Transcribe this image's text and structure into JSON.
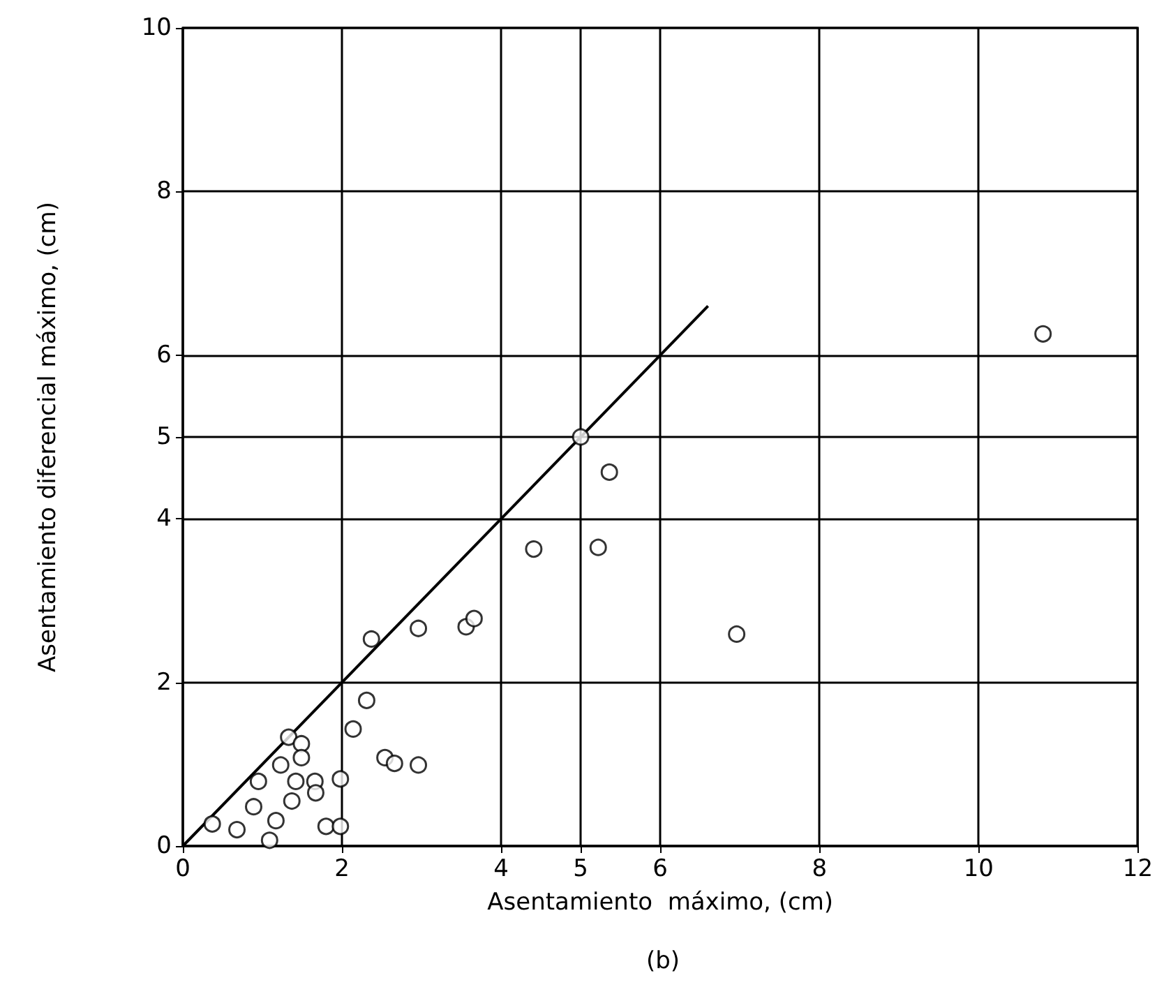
{
  "chart_data": {
    "type": "scatter",
    "xlabel": "Asentamiento  máximo, (cm)",
    "ylabel": "Asentamiento diferencial máximo, (cm)",
    "annotations": [
      "(b)"
    ],
    "xlim": [
      0,
      12
    ],
    "xticks": [
      0,
      2,
      4,
      5,
      6,
      8,
      10,
      12
    ],
    "ylim": [
      0,
      10
    ],
    "yticks": [
      0,
      2,
      4,
      5,
      6,
      8,
      10
    ],
    "grid": true,
    "marker": "circle",
    "series": [
      {
        "color": "#000000",
        "x": [
          0.37,
          0.68,
          1.09,
          0.89,
          1.17,
          0.95,
          1.37,
          1.42,
          1.23,
          1.33,
          1.49,
          1.49,
          1.66,
          1.67,
          1.8,
          1.98,
          1.98,
          2.14,
          2.31,
          2.54,
          2.66,
          2.96,
          2.37,
          2.96,
          3.56,
          3.66,
          5,
          5.36,
          4.41,
          5.22,
          6.96,
          10.81
        ],
        "values": [
          0.27,
          0.2,
          0.07,
          0.48,
          0.31,
          0.79,
          0.55,
          0.79,
          0.99,
          1.33,
          1.25,
          1.08,
          0.79,
          0.65,
          0.24,
          0.24,
          0.82,
          1.43,
          1.78,
          1.08,
          1.01,
          0.99,
          2.53,
          2.66,
          2.68,
          2.78,
          5,
          4.57,
          3.63,
          3.65,
          2.59,
          6.26
        ]
      },
      {
        "type": "line",
        "color": "#000000",
        "x": [
          0,
          6.6
        ],
        "values": [
          0,
          6.6
        ],
        "marker": "none",
        "line_style": "solid"
      }
    ]
  }
}
